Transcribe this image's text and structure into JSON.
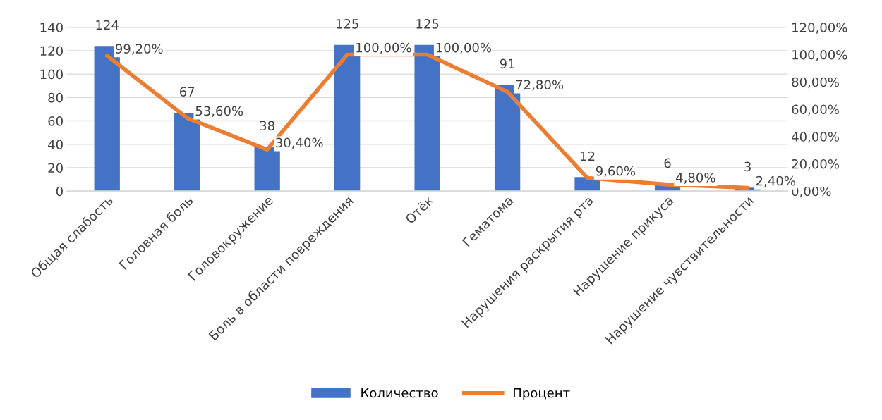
{
  "chart_data": {
    "type": "bar",
    "categories": [
      "Общая слабость",
      "Головная боль",
      "Головокружение",
      "Боль в области повреждения",
      "Отёк",
      "Гематома",
      "Нарушения раскрытия рта",
      "Нарушение прикуса",
      "Нарушение чувствительности"
    ],
    "series": [
      {
        "name": "Количество",
        "color": "#4472c4",
        "values": [
          124,
          67,
          38,
          125,
          125,
          91,
          12,
          6,
          3
        ],
        "value_labels": [
          "124",
          "67",
          "38",
          "125",
          "125",
          "91",
          "12",
          "6",
          "3"
        ]
      },
      {
        "name": "Процент",
        "type": "line",
        "axis": "y2",
        "color": "#ed7d31",
        "values": [
          99.2,
          53.6,
          30.4,
          100,
          100,
          72.8,
          9.6,
          4.8,
          2.4
        ],
        "value_labels": [
          "99,20%",
          "53,60%",
          "30,40%",
          "100,00%",
          "100,00%",
          "72,80%",
          "9,60%",
          "4,80%",
          "2,40%"
        ]
      }
    ],
    "ylim": [
      0,
      140
    ],
    "yticks": [
      0,
      20,
      40,
      60,
      80,
      100,
      120,
      140
    ],
    "y2lim": [
      0,
      120
    ],
    "y2ticks": [
      {
        "value": 0,
        "label": "0,00%"
      },
      {
        "value": 20,
        "label": "20,00%"
      },
      {
        "value": 40,
        "label": "40,00%"
      },
      {
        "value": 60,
        "label": "60,00%"
      },
      {
        "value": 80,
        "label": "80,00%"
      },
      {
        "value": 100,
        "label": "100,00%"
      },
      {
        "value": 120,
        "label": "120,00%"
      }
    ],
    "grid": "y",
    "legend": "bottom",
    "marker": "none",
    "line_style": "solid"
  }
}
